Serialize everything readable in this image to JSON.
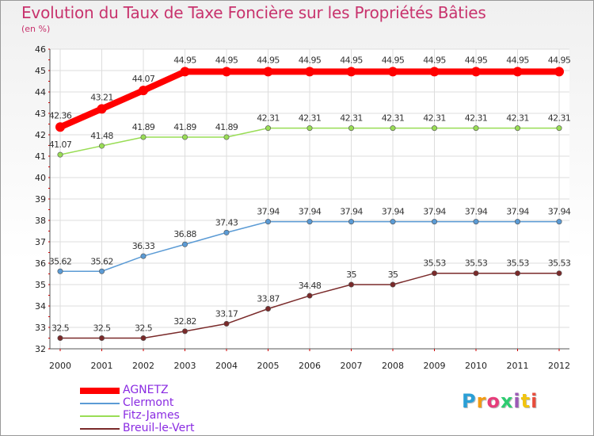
{
  "title": "Evolution du Taux de Taxe Foncière sur les Propriétés Bâties",
  "subtitle": "(en %)",
  "logo": {
    "text": "Proxiti",
    "colors": [
      "#2a9fd6",
      "#f39c12",
      "#e63c7a",
      "#2ecc71",
      "#9b59b6",
      "#f1c40f",
      "#e74c3c"
    ]
  },
  "chart_data": {
    "type": "line",
    "x": [
      "2000",
      "2001",
      "2002",
      "2003",
      "2004",
      "2005",
      "2006",
      "2007",
      "2008",
      "2009",
      "2010",
      "2011",
      "2012"
    ],
    "ylim": [
      32,
      46
    ],
    "yticks": [
      32,
      33,
      34,
      35,
      36,
      37,
      38,
      39,
      40,
      41,
      42,
      43,
      44,
      45,
      46
    ],
    "grid": true,
    "legend_position": "bottom-left",
    "series": [
      {
        "name": "AGNETZ",
        "color": "#ff0000",
        "width": 8,
        "values": [
          42.36,
          43.21,
          44.07,
          44.95,
          44.95,
          44.95,
          44.95,
          44.95,
          44.95,
          44.95,
          44.95,
          44.95,
          44.95
        ],
        "labels": [
          "42.36",
          "43.21",
          "44.07",
          "44.95",
          "44.95",
          "44.95",
          "44.95",
          "44.95",
          "44.95",
          "44.95",
          "44.95",
          "44.95",
          "44.95"
        ]
      },
      {
        "name": "Clermont",
        "color": "#5b9bd5",
        "width": 1.5,
        "values": [
          35.62,
          35.62,
          36.33,
          36.88,
          37.43,
          37.94,
          37.94,
          37.94,
          37.94,
          37.94,
          37.94,
          37.94,
          37.94
        ],
        "labels": [
          "35.62",
          "35.62",
          "36.33",
          "36.88",
          "37.43",
          "37.94",
          "37.94",
          "37.94",
          "37.94",
          "37.94",
          "37.94",
          "37.94",
          "37.94"
        ]
      },
      {
        "name": "Fitz-James",
        "color": "#99dd55",
        "width": 1.5,
        "values": [
          41.07,
          41.48,
          41.89,
          41.89,
          41.89,
          42.31,
          42.31,
          42.31,
          42.31,
          42.31,
          42.31,
          42.31,
          42.31
        ],
        "labels": [
          "41.07",
          "41.48",
          "41.89",
          "41.89",
          "41.89",
          "42.31",
          "42.31",
          "42.31",
          "42.31",
          "42.31",
          "42.31",
          "42.31",
          "42.31"
        ]
      },
      {
        "name": "Breuil-le-Vert",
        "color": "#7a2a2a",
        "width": 1.5,
        "values": [
          32.5,
          32.5,
          32.5,
          32.82,
          33.17,
          33.87,
          34.48,
          35,
          35,
          35.53,
          35.53,
          35.53,
          35.53
        ],
        "labels": [
          "32.5",
          "32.5",
          "32.5",
          "32.82",
          "33.17",
          "33.87",
          "34.48",
          "35",
          "35",
          "35.53",
          "35.53",
          "35.53",
          "35.53"
        ]
      }
    ]
  }
}
